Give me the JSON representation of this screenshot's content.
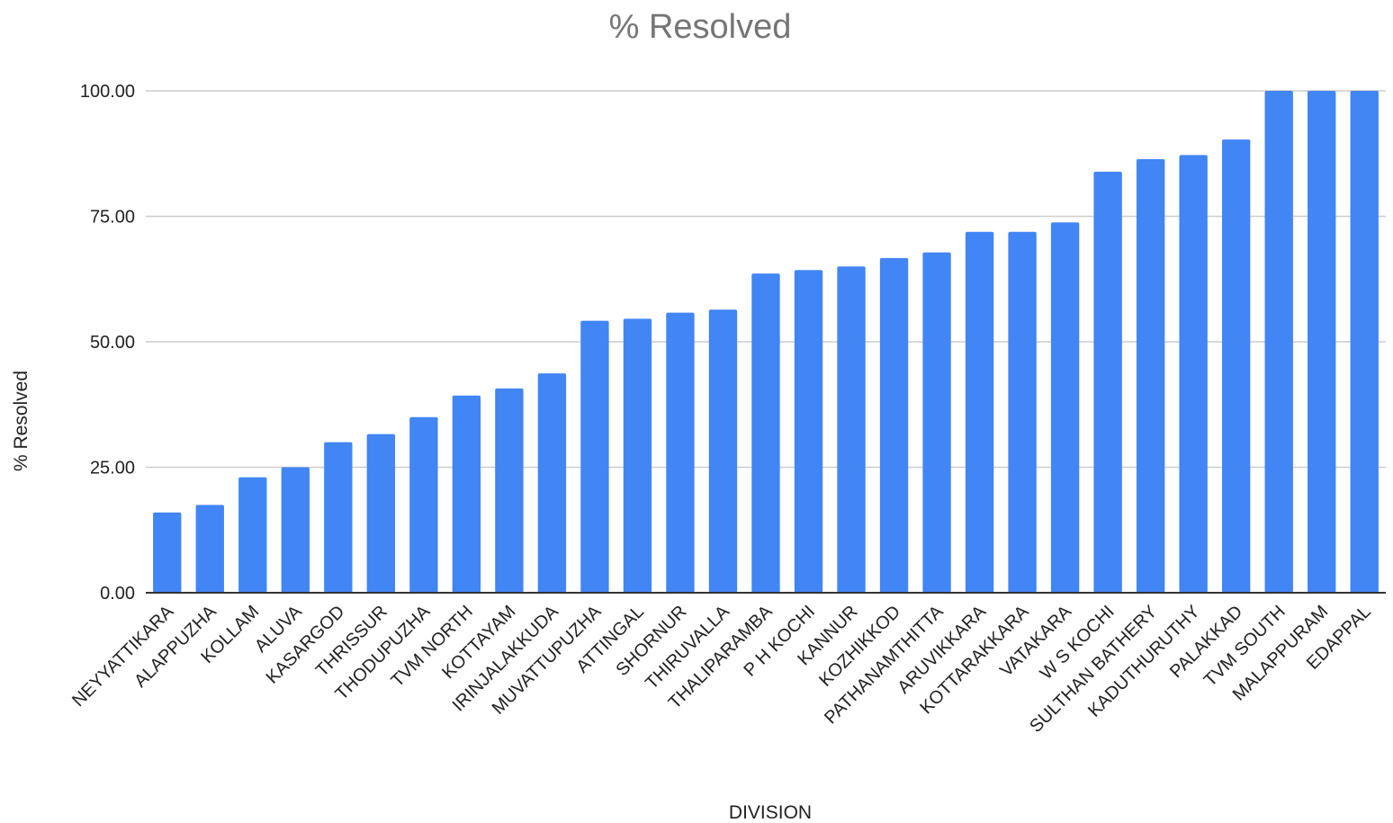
{
  "chart_data": {
    "type": "bar",
    "title": "% Resolved",
    "xlabel": "DIVISION",
    "ylabel": "% Resolved",
    "ylim": [
      0,
      100
    ],
    "yticks": [
      "0.00",
      "25.00",
      "50.00",
      "75.00",
      "100.00"
    ],
    "grid": true,
    "legend": "none",
    "bar_color": "#4285F4",
    "categories": [
      "NEYYATTIKARA",
      "ALAPPUZHA",
      "KOLLAM",
      "ALUVA",
      "KASARGOD",
      "THRISSUR",
      "THODUPUZHA",
      "TVM NORTH",
      "KOTTAYAM",
      "IRINJALAKKUDA",
      "MUVATTUPUZHA",
      "ATTINGAL",
      "SHORNUR",
      "THIRUVALLA",
      "THALIPARAMBA",
      "P H KOCHI",
      "KANNUR",
      "KOZHIKKOD",
      "PATHANAMTHITTA",
      "ARUVIKKARA",
      "KOTTARAKKARA",
      "VATAKARA",
      "W S KOCHI",
      "SULTHAN BATHERY",
      "KADUTHURUTHY",
      "PALAKKAD",
      "TVM SOUTH",
      "MALAPPURAM",
      "EDAPPAL"
    ],
    "values": [
      16.0,
      17.5,
      23.0,
      25.0,
      30.0,
      31.6,
      35.0,
      39.3,
      40.7,
      43.7,
      54.2,
      54.6,
      55.8,
      56.4,
      63.6,
      64.3,
      65.0,
      66.7,
      67.8,
      71.9,
      71.9,
      73.8,
      83.9,
      86.4,
      87.2,
      90.3,
      100.0,
      100.0,
      100.0
    ]
  }
}
